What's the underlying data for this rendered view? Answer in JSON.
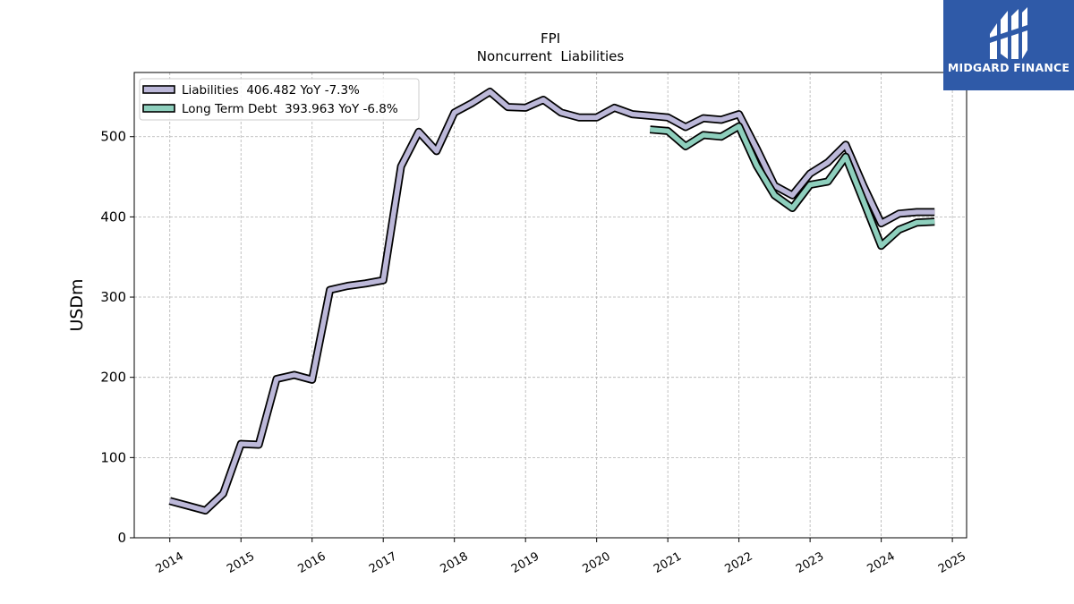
{
  "logo": {
    "text": "MIDGARD FINANCE",
    "background": "#2f5aa8",
    "icon": "midgard-logo-icon"
  },
  "chart_data": {
    "type": "line",
    "title": "FPI",
    "subtitle": "Noncurrent  Liabilities",
    "ylabel": "USDm",
    "xlabel": "",
    "xlim": [
      2013.5,
      2025.2
    ],
    "ylim": [
      0,
      580
    ],
    "yticks": [
      0,
      100,
      200,
      300,
      400,
      500
    ],
    "xticks": [
      "2014",
      "2015",
      "2016",
      "2017",
      "2018",
      "2019",
      "2020",
      "2021",
      "2022",
      "2023",
      "2024",
      "2025"
    ],
    "grid": true,
    "legend_position": "top-left",
    "series": [
      {
        "name": "Liabilities",
        "legend_label": "Liabilities  406.482 YoY -7.3%",
        "color": "#bcb8d9",
        "x": [
          2014.0,
          2014.25,
          2014.5,
          2014.75,
          2015.0,
          2015.25,
          2015.5,
          2015.75,
          2016.0,
          2016.25,
          2016.5,
          2016.75,
          2017.0,
          2017.25,
          2017.5,
          2017.75,
          2018.0,
          2018.25,
          2018.5,
          2018.75,
          2019.0,
          2019.25,
          2019.5,
          2019.75,
          2020.0,
          2020.25,
          2020.5,
          2020.75,
          2021.0,
          2021.25,
          2021.5,
          2021.75,
          2022.0,
          2022.25,
          2022.5,
          2022.75,
          2023.0,
          2023.25,
          2023.5,
          2023.75,
          2024.0,
          2024.25,
          2024.5,
          2024.75
        ],
        "values": [
          46,
          40,
          34,
          55,
          117,
          116,
          198,
          203,
          197,
          309,
          314,
          317,
          321,
          463,
          506,
          482,
          530,
          542,
          556,
          537,
          536,
          546,
          530,
          524,
          524,
          536,
          528,
          526,
          524,
          512,
          523,
          521,
          528,
          485,
          439,
          427,
          454,
          468,
          490,
          439,
          392,
          404,
          406,
          406
        ]
      },
      {
        "name": "Long Term Debt",
        "legend_label": "Long Term Debt  393.963 YoY -6.8%",
        "color": "#8ecfbd",
        "x": [
          2020.75,
          2021.0,
          2021.25,
          2021.5,
          2021.75,
          2022.0,
          2022.25,
          2022.5,
          2022.75,
          2023.0,
          2023.25,
          2023.5,
          2023.75,
          2024.0,
          2024.25,
          2024.5,
          2024.75
        ],
        "values": [
          509,
          507,
          488,
          502,
          500,
          513,
          464,
          427,
          411,
          440,
          444,
          475,
          420,
          364,
          384,
          393,
          394
        ]
      }
    ]
  }
}
